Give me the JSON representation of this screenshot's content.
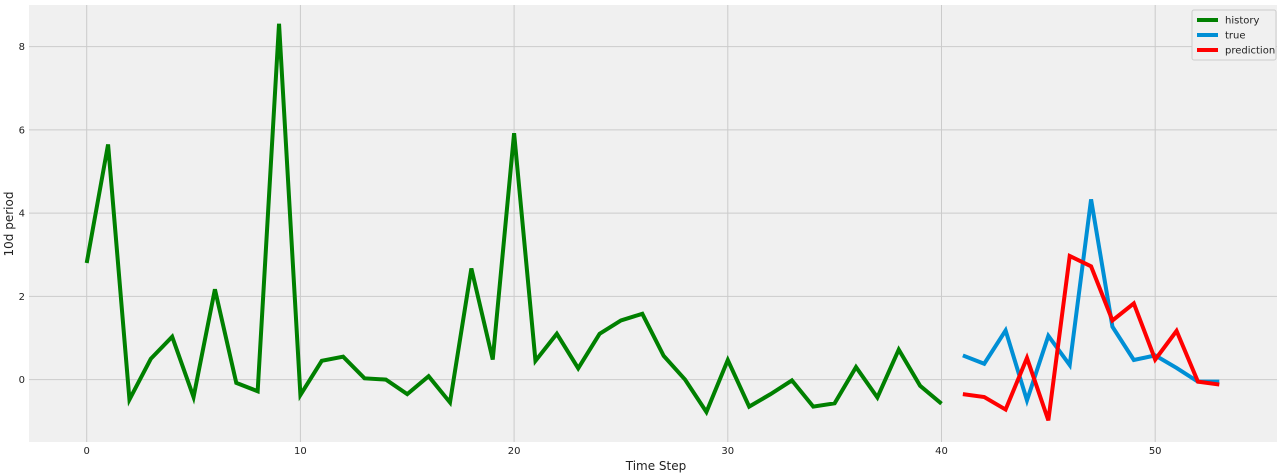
{
  "chart_data": {
    "type": "line",
    "xlabel": "Time Step",
    "ylabel": "10d period",
    "xlim": [
      -2.7,
      55.7
    ],
    "ylim": [
      -1.5,
      9.0
    ],
    "xticks": [
      0,
      10,
      20,
      30,
      40,
      50
    ],
    "yticks": [
      0,
      2,
      4,
      6,
      8
    ],
    "grid": true,
    "legend_position": "top-right",
    "series": [
      {
        "name": "history",
        "color": "#008000",
        "x": [
          0,
          1,
          2,
          3,
          4,
          5,
          6,
          7,
          8,
          9,
          10,
          11,
          12,
          13,
          14,
          15,
          16,
          17,
          18,
          19,
          20,
          21,
          22,
          23,
          24,
          25,
          26,
          27,
          28,
          29,
          30,
          31,
          32,
          33,
          34,
          35,
          36,
          37,
          38,
          39,
          40
        ],
        "values": [
          2.8,
          5.65,
          -0.48,
          0.5,
          1.03,
          -0.42,
          2.17,
          -0.08,
          -0.28,
          8.55,
          -0.37,
          0.45,
          0.55,
          0.03,
          0.0,
          -0.35,
          0.08,
          -0.55,
          2.67,
          0.48,
          5.92,
          0.45,
          1.1,
          0.27,
          1.1,
          1.42,
          1.58,
          0.57,
          0.0,
          -0.78,
          0.47,
          -0.65,
          -0.35,
          -0.02,
          -0.65,
          -0.57,
          0.3,
          -0.43,
          0.72,
          -0.15,
          -0.58
        ]
      },
      {
        "name": "true",
        "color": "#008fd5",
        "x": [
          41,
          42,
          43,
          44,
          45,
          46,
          47,
          48,
          49,
          50,
          51,
          52,
          53
        ],
        "values": [
          0.58,
          0.38,
          1.18,
          -0.5,
          1.05,
          0.35,
          4.33,
          1.27,
          0.47,
          0.58,
          0.28,
          -0.05,
          -0.05
        ]
      },
      {
        "name": "prediction",
        "color": "#ff0000",
        "x": [
          41,
          42,
          43,
          44,
          45,
          46,
          47,
          48,
          49,
          50,
          51,
          52,
          53
        ],
        "values": [
          -0.35,
          -0.42,
          -0.72,
          0.52,
          -0.98,
          2.97,
          2.72,
          1.42,
          1.83,
          0.48,
          1.17,
          -0.05,
          -0.12
        ]
      }
    ]
  }
}
